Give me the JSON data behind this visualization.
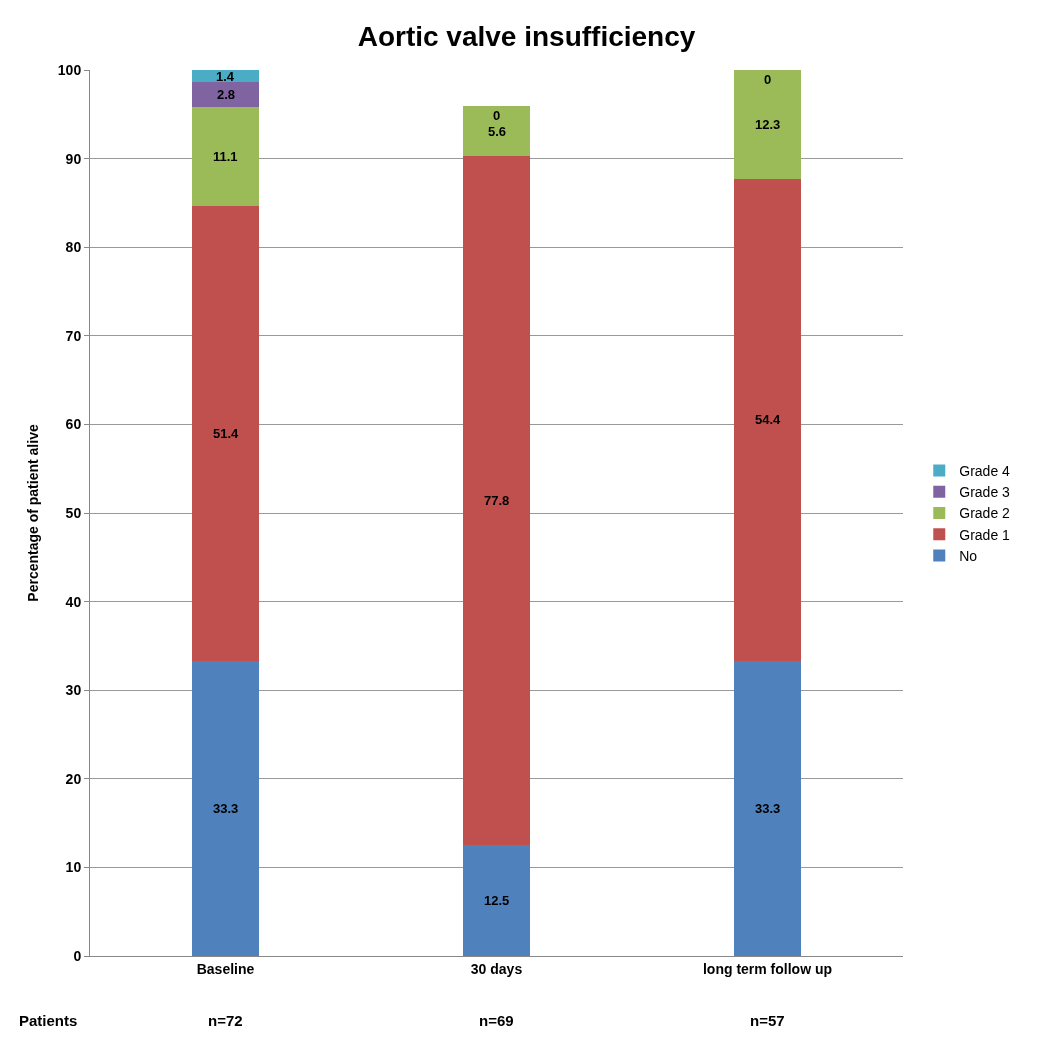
{
  "chart_data": {
    "type": "bar",
    "stacked": true,
    "title": "Aortic valve insufficiency",
    "ylabel": "Percentage of patient alive",
    "categories": [
      "Baseline",
      "30 days",
      "long term follow up"
    ],
    "series": [
      {
        "name": "No",
        "color": "#4f81bd",
        "values": [
          33.3,
          12.5,
          33.3
        ],
        "value_labels": [
          "33.3",
          "12.5",
          "33.3"
        ]
      },
      {
        "name": "Grade 1",
        "color": "#c0504d",
        "values": [
          51.4,
          77.8,
          54.4
        ],
        "value_labels": [
          "51.4",
          "77.8",
          "54.4"
        ]
      },
      {
        "name": "Grade 2",
        "color": "#9bbb59",
        "values": [
          11.1,
          5.6,
          12.3
        ],
        "value_labels": [
          "11.1",
          "5.6",
          "12.3"
        ]
      },
      {
        "name": "Grade 3",
        "color": "#8064a2",
        "values": [
          2.8,
          0,
          0
        ],
        "value_labels": [
          "2.8",
          null,
          null
        ]
      },
      {
        "name": "Grade 4",
        "color": "#4bacc6",
        "values": [
          1.4,
          0,
          0
        ],
        "value_labels": [
          "1.4",
          "0",
          "0"
        ]
      }
    ],
    "ylim": [
      0,
      100
    ],
    "yticks": [
      0,
      10,
      20,
      30,
      40,
      50,
      60,
      70,
      80,
      90,
      100
    ],
    "grid": "y",
    "legend": "right",
    "annotations": [
      "Patients",
      "n=72",
      "n=69",
      "n=57"
    ]
  }
}
